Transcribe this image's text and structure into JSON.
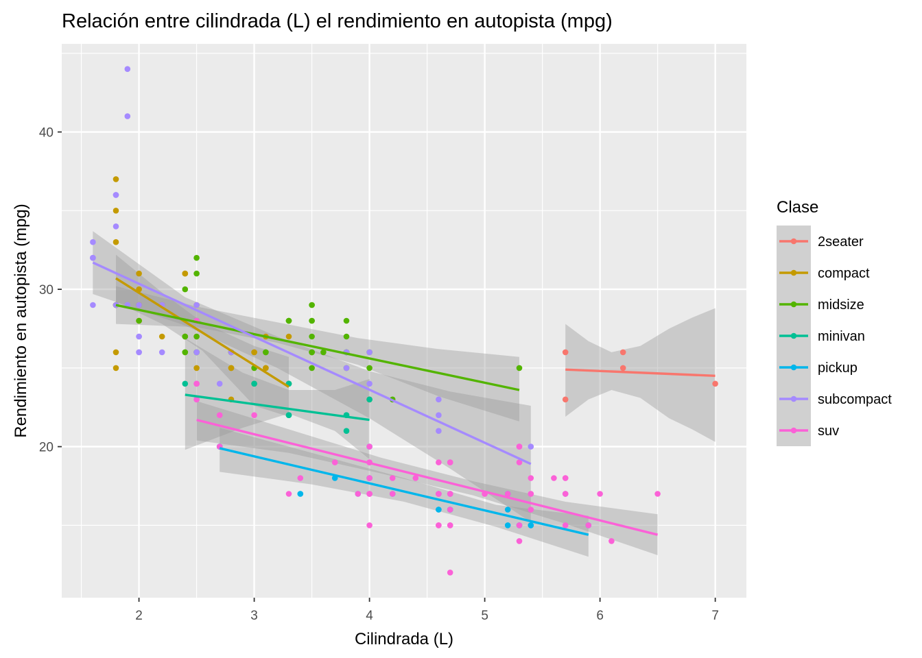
{
  "chart_data": {
    "type": "scatter",
    "title": "Relación entre cilindrada (L) el rendimiento en autopista (mpg)",
    "xlabel": "Cilindrada (L)",
    "ylabel": "Rendimiento en autopista (mpg)",
    "xlim": [
      1.33,
      7.27
    ],
    "ylim": [
      10.4,
      45.6
    ],
    "x_ticks": [
      2,
      3,
      4,
      5,
      6,
      7
    ],
    "y_ticks": [
      20,
      30,
      40
    ],
    "grid": true,
    "panel_background": "#ebebeb",
    "legend": {
      "title": "Clase",
      "position": "right",
      "background": "#d0d0d0"
    },
    "ribbon_color": "#999999",
    "series": [
      {
        "name": "2seater",
        "color": "#F8766D",
        "points": [
          [
            5.7,
            26
          ],
          [
            5.7,
            23
          ],
          [
            6.2,
            26
          ],
          [
            6.2,
            25
          ],
          [
            7.0,
            24
          ]
        ],
        "fit": {
          "x0": 5.7,
          "y0": 24.9,
          "x1": 7.0,
          "y1": 24.5
        },
        "band": [
          [
            5.7,
            27.8,
            21.9
          ],
          [
            5.9,
            26.7,
            23.0
          ],
          [
            6.1,
            26.0,
            23.6
          ],
          [
            6.35,
            26.4,
            23.1
          ],
          [
            6.6,
            27.5,
            21.8
          ],
          [
            6.8,
            28.2,
            21.1
          ],
          [
            7.0,
            28.8,
            20.3
          ]
        ]
      },
      {
        "name": "compact",
        "color": "#C49A00",
        "points": [
          [
            1.8,
            29
          ],
          [
            1.8,
            29
          ],
          [
            2.0,
            31
          ],
          [
            2.0,
            30
          ],
          [
            2.8,
            26
          ],
          [
            2.8,
            26
          ],
          [
            3.1,
            27
          ],
          [
            1.8,
            26
          ],
          [
            1.8,
            25
          ],
          [
            2.0,
            28
          ],
          [
            2.0,
            28
          ],
          [
            2.8,
            25
          ],
          [
            2.8,
            25
          ],
          [
            3.1,
            25
          ],
          [
            3.1,
            25
          ],
          [
            2.2,
            27
          ],
          [
            2.2,
            29
          ],
          [
            2.4,
            31
          ],
          [
            2.4,
            31
          ],
          [
            3.0,
            26
          ],
          [
            3.0,
            26
          ],
          [
            3.3,
            27
          ],
          [
            1.8,
            37
          ],
          [
            1.8,
            35
          ],
          [
            1.8,
            33
          ],
          [
            2.0,
            29
          ],
          [
            2.0,
            29
          ],
          [
            2.5,
            27
          ],
          [
            2.5,
            25
          ],
          [
            2.5,
            29
          ],
          [
            2.8,
            23
          ],
          [
            2.4,
            27
          ],
          [
            2.4,
            27
          ],
          [
            3.3,
            24
          ],
          [
            3.3,
            24
          ]
        ],
        "fit": {
          "x0": 1.8,
          "y0": 30.7,
          "x1": 3.3,
          "y1": 23.8
        },
        "band": [
          [
            1.8,
            32.2,
            29.2
          ],
          [
            2.2,
            29.8,
            27.8
          ],
          [
            2.55,
            27.9,
            26.1
          ],
          [
            3.0,
            26.4,
            22.6
          ],
          [
            3.3,
            25.7,
            21.9
          ]
        ]
      },
      {
        "name": "midsize",
        "color": "#53B400",
        "points": [
          [
            2.4,
            27
          ],
          [
            2.4,
            30
          ],
          [
            3.1,
            26
          ],
          [
            3.5,
            29
          ],
          [
            3.6,
            26
          ],
          [
            2.4,
            26
          ],
          [
            3.0,
            25
          ],
          [
            3.3,
            28
          ],
          [
            3.3,
            28
          ],
          [
            3.3,
            28
          ],
          [
            3.5,
            26
          ],
          [
            3.8,
            27
          ],
          [
            3.8,
            26
          ],
          [
            3.8,
            28
          ],
          [
            5.3,
            25
          ],
          [
            1.8,
            29
          ],
          [
            2.5,
            26
          ],
          [
            2.5,
            31
          ],
          [
            2.5,
            32
          ],
          [
            2.5,
            27
          ],
          [
            2.5,
            26
          ],
          [
            2.5,
            28
          ],
          [
            3.5,
            25
          ],
          [
            3.5,
            27
          ],
          [
            3.5,
            28
          ],
          [
            3.5,
            29
          ],
          [
            3.8,
            25
          ],
          [
            3.8,
            26
          ],
          [
            4.0,
            25
          ],
          [
            4.0,
            26
          ],
          [
            4.2,
            23
          ],
          [
            3.5,
            28
          ],
          [
            3.5,
            26
          ],
          [
            2.0,
            28
          ],
          [
            2.8,
            26
          ],
          [
            3.1,
            26
          ],
          [
            3.5,
            26
          ],
          [
            2.4,
            27
          ],
          [
            2.4,
            26
          ],
          [
            2.5,
            26
          ],
          [
            3.0,
            24
          ],
          [
            4.0,
            23
          ]
        ],
        "fit": {
          "x0": 1.8,
          "y0": 29.0,
          "x1": 5.3,
          "y1": 23.6
        },
        "band": [
          [
            1.8,
            30.2,
            27.8
          ],
          [
            2.5,
            28.9,
            27.6
          ],
          [
            3.2,
            27.9,
            26.6
          ],
          [
            3.9,
            26.9,
            25.2
          ],
          [
            4.6,
            26.2,
            23.2
          ],
          [
            5.3,
            25.7,
            21.6
          ]
        ]
      },
      {
        "name": "minivan",
        "color": "#00C094",
        "points": [
          [
            2.4,
            24
          ],
          [
            3.0,
            24
          ],
          [
            3.3,
            22
          ],
          [
            3.3,
            22
          ],
          [
            3.3,
            24
          ],
          [
            3.3,
            24
          ],
          [
            3.3,
            22
          ],
          [
            3.8,
            21
          ],
          [
            3.8,
            22
          ],
          [
            3.8,
            22
          ],
          [
            4.0,
            23
          ]
        ],
        "fit": {
          "x0": 2.4,
          "y0": 23.3,
          "x1": 4.0,
          "y1": 21.7
        },
        "band": [
          [
            2.4,
            26.9,
            19.8
          ],
          [
            2.9,
            24.7,
            21.2
          ],
          [
            3.3,
            23.6,
            22.1
          ],
          [
            3.7,
            23.6,
            21.0
          ],
          [
            4.0,
            24.3,
            19.2
          ]
        ]
      },
      {
        "name": "pickup",
        "color": "#00B6EB",
        "points": [
          [
            2.7,
            20
          ],
          [
            2.7,
            20
          ],
          [
            3.4,
            17
          ],
          [
            3.4,
            17
          ],
          [
            3.7,
            18
          ],
          [
            3.9,
            17
          ],
          [
            4.0,
            20
          ],
          [
            4.0,
            18
          ],
          [
            4.2,
            17
          ],
          [
            4.6,
            17
          ],
          [
            4.7,
            16
          ],
          [
            4.7,
            16
          ],
          [
            5.2,
            17
          ],
          [
            5.2,
            15
          ],
          [
            5.7,
            17
          ],
          [
            5.9,
            15
          ],
          [
            5.3,
            15
          ],
          [
            5.4,
            15
          ],
          [
            5.2,
            16
          ],
          [
            4.6,
            16
          ],
          [
            4.7,
            17
          ],
          [
            4.0,
            18
          ],
          [
            5.4,
            15
          ],
          [
            4.6,
            16
          ]
        ],
        "fit": {
          "x0": 2.7,
          "y0": 19.9,
          "x1": 5.9,
          "y1": 14.4
        },
        "band": [
          [
            2.7,
            21.2,
            18.4
          ],
          [
            3.5,
            19.6,
            17.6
          ],
          [
            4.3,
            18.0,
            16.5
          ],
          [
            5.1,
            16.3,
            14.9
          ],
          [
            5.9,
            15.6,
            13.0
          ]
        ]
      },
      {
        "name": "subcompact",
        "color": "#A58AFF",
        "points": [
          [
            3.8,
            26
          ],
          [
            3.8,
            25
          ],
          [
            4.0,
            26
          ],
          [
            4.0,
            24
          ],
          [
            4.6,
            21
          ],
          [
            4.6,
            22
          ],
          [
            4.6,
            23
          ],
          [
            5.4,
            20
          ],
          [
            1.6,
            33
          ],
          [
            1.6,
            32
          ],
          [
            1.6,
            32
          ],
          [
            1.6,
            29
          ],
          [
            1.6,
            32
          ],
          [
            1.8,
            34
          ],
          [
            1.8,
            36
          ],
          [
            1.8,
            36
          ],
          [
            2.0,
            29
          ],
          [
            2.0,
            26
          ],
          [
            2.0,
            27
          ],
          [
            2.2,
            29
          ],
          [
            2.2,
            26
          ],
          [
            2.5,
            29
          ],
          [
            2.5,
            26
          ],
          [
            2.8,
            26
          ],
          [
            2.0,
            27
          ],
          [
            1.9,
            44
          ],
          [
            1.9,
            41
          ],
          [
            1.9,
            29
          ],
          [
            2.5,
            26
          ],
          [
            2.5,
            28
          ],
          [
            2.7,
            24
          ],
          [
            2.5,
            23
          ],
          [
            2.5,
            24
          ],
          [
            1.8,
            29
          ],
          [
            2.0,
            26
          ]
        ],
        "fit": {
          "x0": 1.6,
          "y0": 31.7,
          "x1": 5.4,
          "y1": 18.9
        },
        "band": [
          [
            1.6,
            33.7,
            29.7
          ],
          [
            2.4,
            29.5,
            27.7
          ],
          [
            3.2,
            27.0,
            25.0
          ],
          [
            4.0,
            24.8,
            21.8
          ],
          [
            4.7,
            23.5,
            18.6
          ],
          [
            5.4,
            22.6,
            15.2
          ]
        ]
      },
      {
        "name": "suv",
        "color": "#FB61D7",
        "points": [
          [
            5.3,
            20
          ],
          [
            5.3,
            15
          ],
          [
            5.3,
            20
          ],
          [
            5.7,
            17
          ],
          [
            6.0,
            17
          ],
          [
            5.7,
            15
          ],
          [
            5.7,
            18
          ],
          [
            6.5,
            17
          ],
          [
            4.7,
            17
          ],
          [
            4.7,
            19
          ],
          [
            4.7,
            17
          ],
          [
            4.7,
            12
          ],
          [
            5.2,
            17
          ],
          [
            5.7,
            17
          ],
          [
            5.9,
            15
          ],
          [
            4.0,
            17
          ],
          [
            4.0,
            17
          ],
          [
            4.6,
            17
          ],
          [
            5.0,
            17
          ],
          [
            4.0,
            19
          ],
          [
            4.0,
            17
          ],
          [
            4.0,
            19
          ],
          [
            4.6,
            15
          ],
          [
            5.4,
            17
          ],
          [
            4.7,
            15
          ],
          [
            4.7,
            15
          ],
          [
            4.6,
            19
          ],
          [
            4.2,
            18
          ],
          [
            4.4,
            18
          ],
          [
            4.6,
            15
          ],
          [
            5.4,
            18
          ],
          [
            5.4,
            16
          ],
          [
            5.4,
            17
          ],
          [
            3.7,
            19
          ],
          [
            4.7,
            19
          ],
          [
            4.7,
            17
          ],
          [
            5.6,
            18
          ],
          [
            6.1,
            14
          ],
          [
            5.3,
            19
          ],
          [
            5.3,
            14
          ],
          [
            2.5,
            23
          ],
          [
            2.5,
            24
          ],
          [
            2.7,
            20
          ],
          [
            4.0,
            17
          ],
          [
            4.0,
            20
          ],
          [
            4.0,
            15
          ],
          [
            4.2,
            17
          ],
          [
            4.6,
            17
          ],
          [
            4.0,
            18
          ],
          [
            4.7,
            16
          ],
          [
            5.7,
            18
          ],
          [
            3.0,
            22
          ],
          [
            3.3,
            17
          ],
          [
            3.9,
            17
          ],
          [
            4.0,
            18
          ],
          [
            4.6,
            17
          ],
          [
            5.0,
            17
          ],
          [
            2.5,
            24
          ],
          [
            2.5,
            28
          ],
          [
            3.4,
            18
          ],
          [
            2.7,
            22
          ]
        ],
        "fit": {
          "x0": 2.5,
          "y0": 21.7,
          "x1": 6.5,
          "y1": 14.4
        },
        "band": [
          [
            2.5,
            22.9,
            20.4
          ],
          [
            3.3,
            21.1,
            19.6
          ],
          [
            4.1,
            19.3,
            18.3
          ],
          [
            4.9,
            17.8,
            16.9
          ],
          [
            5.7,
            16.5,
            15.1
          ],
          [
            6.5,
            15.7,
            13.1
          ]
        ]
      }
    ]
  }
}
